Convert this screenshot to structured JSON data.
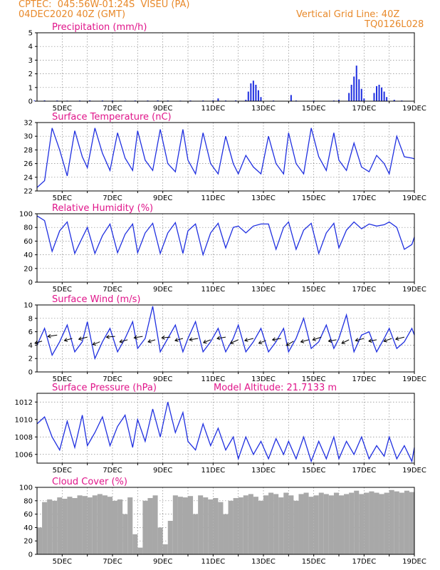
{
  "header": {
    "line1": "CPTEC:  045:56W-01:24S  VISEU (PA)",
    "line2": "04DEC2020 40Z (GMT)",
    "right1": "Vertical Grid Line: 40Z",
    "right2": "TQ0126L028"
  },
  "x_axis_labels": [
    "5DEC",
    "7DEC",
    "9DEC",
    "11DEC",
    "13DEC",
    "15DEC",
    "17DEC",
    "19DEC"
  ],
  "colors": {
    "header": "#e8892a",
    "title": "#e0158a",
    "line": "#1f2fe0",
    "cloud": "#a8a8a8",
    "arrow": "#000000"
  },
  "chart_data": [
    {
      "type": "bar",
      "title": "Precipitation (mm/h)",
      "ylim": [
        0,
        5
      ],
      "yticks": [
        "0",
        "1",
        "2",
        "3",
        "4",
        "5"
      ],
      "x_days": [
        3.9,
        4.3,
        4.8,
        5.2,
        5.7,
        6.1,
        6.6,
        7.0,
        7.5,
        7.9,
        8.4,
        8.8,
        9.2,
        9.7,
        10.1,
        10.6,
        11.0,
        11.2,
        11.5,
        11.9,
        12.3,
        12.4,
        12.5,
        12.6,
        12.7,
        12.8,
        12.9,
        13.4,
        14.1,
        14.3,
        15.0,
        15.8,
        16.0,
        16.4,
        16.5,
        16.6,
        16.7,
        16.8,
        16.9,
        17.0,
        17.4,
        17.5,
        17.6,
        17.7,
        17.8,
        17.9,
        18.2,
        18.5
      ],
      "values": [
        0.05,
        0.06,
        0.05,
        0.04,
        0.05,
        0.06,
        0.05,
        0.05,
        0.04,
        0.05,
        0.05,
        0.06,
        0.05,
        0.04,
        0.05,
        0.05,
        0.06,
        0.2,
        0.05,
        0.06,
        0.1,
        0.7,
        1.3,
        1.5,
        1.2,
        0.8,
        0.3,
        0.05,
        0.45,
        0.05,
        0.05,
        0.05,
        0.1,
        0.6,
        1.2,
        1.8,
        2.6,
        1.6,
        0.9,
        0.2,
        0.6,
        1.1,
        1.2,
        1.0,
        0.7,
        0.3,
        0.1,
        0.05
      ]
    },
    {
      "type": "line",
      "title": "Surface Temperature (nC)",
      "ylim": [
        22,
        32
      ],
      "yticks": [
        "22",
        "24",
        "26",
        "28",
        "30",
        "32"
      ],
      "x_days": [
        4.0,
        4.3,
        4.6,
        4.9,
        5.2,
        5.5,
        5.8,
        6.0,
        6.3,
        6.6,
        6.9,
        7.2,
        7.5,
        7.8,
        8.0,
        8.3,
        8.6,
        8.9,
        9.2,
        9.5,
        9.8,
        10.0,
        10.3,
        10.6,
        10.9,
        11.2,
        11.5,
        11.8,
        12.0,
        12.3,
        12.6,
        12.9,
        13.2,
        13.5,
        13.8,
        14.0,
        14.3,
        14.6,
        14.9,
        15.2,
        15.5,
        15.8,
        16.0,
        16.3,
        16.6,
        16.9,
        17.2,
        17.5,
        17.8,
        18.0,
        18.3,
        18.6,
        18.9,
        19.0
      ],
      "values": [
        22.5,
        23.5,
        31.2,
        28.0,
        24.2,
        30.8,
        27.0,
        25.4,
        31.2,
        27.5,
        25.0,
        30.5,
        26.8,
        25.0,
        30.8,
        26.5,
        25.0,
        31.0,
        26.0,
        24.8,
        31.0,
        26.5,
        24.5,
        30.5,
        26.0,
        24.5,
        30.0,
        26.0,
        24.5,
        27.2,
        25.5,
        24.5,
        30.0,
        26.0,
        24.5,
        30.5,
        26.0,
        24.5,
        31.2,
        27.0,
        25.0,
        30.5,
        26.5,
        25.0,
        29.0,
        25.5,
        24.8,
        27.2,
        26.0,
        24.5,
        30.0,
        27.0,
        26.8,
        26.7
      ]
    },
    {
      "type": "line",
      "title": "Relative Humidity (%)",
      "ylim": [
        0,
        100
      ],
      "yticks": [
        "0",
        "20",
        "40",
        "60",
        "80",
        "100"
      ],
      "x_days": [
        4.0,
        4.3,
        4.6,
        4.9,
        5.2,
        5.5,
        5.8,
        6.0,
        6.3,
        6.6,
        6.9,
        7.2,
        7.5,
        7.8,
        8.0,
        8.3,
        8.6,
        8.9,
        9.2,
        9.5,
        9.8,
        10.0,
        10.3,
        10.6,
        10.9,
        11.2,
        11.5,
        11.8,
        12.0,
        12.3,
        12.6,
        12.9,
        13.2,
        13.5,
        13.8,
        14.0,
        14.3,
        14.6,
        14.9,
        15.2,
        15.5,
        15.8,
        16.0,
        16.3,
        16.6,
        16.9,
        17.2,
        17.5,
        17.8,
        18.0,
        18.3,
        18.6,
        18.9,
        19.0
      ],
      "values": [
        97,
        90,
        45,
        75,
        88,
        42,
        65,
        80,
        42,
        68,
        85,
        43,
        70,
        85,
        43,
        72,
        86,
        42,
        72,
        87,
        42,
        75,
        85,
        40,
        72,
        86,
        50,
        80,
        82,
        72,
        82,
        85,
        85,
        48,
        80,
        88,
        48,
        76,
        86,
        42,
        72,
        86,
        50,
        76,
        88,
        78,
        85,
        82,
        84,
        88,
        80,
        48,
        55,
        66
      ]
    },
    {
      "type": "line",
      "title": "Surface Wind (m/s)",
      "ylim": [
        0,
        10
      ],
      "yticks": [
        "0",
        "2",
        "4",
        "6",
        "8",
        "10"
      ],
      "x_days": [
        4.0,
        4.3,
        4.6,
        4.9,
        5.2,
        5.5,
        5.8,
        6.0,
        6.3,
        6.6,
        6.9,
        7.2,
        7.5,
        7.8,
        8.0,
        8.3,
        8.6,
        8.9,
        9.2,
        9.5,
        9.8,
        10.0,
        10.3,
        10.6,
        10.9,
        11.2,
        11.5,
        11.8,
        12.0,
        12.3,
        12.6,
        12.9,
        13.2,
        13.5,
        13.8,
        14.0,
        14.3,
        14.6,
        14.9,
        15.2,
        15.5,
        15.8,
        16.0,
        16.3,
        16.6,
        16.9,
        17.2,
        17.5,
        17.8,
        18.0,
        18.3,
        18.6,
        18.9,
        19.0
      ],
      "values": [
        4.0,
        6.5,
        2.5,
        4.5,
        7.0,
        3.0,
        4.5,
        7.5,
        2.0,
        4.5,
        6.5,
        3.0,
        5.0,
        7.5,
        3.5,
        5.0,
        9.8,
        3.0,
        5.0,
        7.0,
        3.0,
        5.0,
        7.5,
        3.0,
        4.5,
        6.5,
        3.0,
        5.0,
        7.0,
        3.0,
        4.5,
        6.5,
        3.0,
        4.5,
        6.5,
        3.0,
        5.0,
        8.0,
        3.5,
        4.5,
        7.0,
        3.5,
        5.0,
        8.5,
        3.0,
        5.5,
        6.0,
        3.0,
        5.0,
        6.5,
        3.5,
        4.5,
        6.5,
        5.5
      ],
      "vector_x_days": [
        4.2,
        4.8,
        5.4,
        6.0,
        6.5,
        7.1,
        7.6,
        8.2,
        8.7,
        9.3,
        9.8,
        10.4,
        10.9,
        11.5,
        12.0,
        12.6,
        13.1,
        13.7,
        14.2,
        14.8,
        15.3,
        15.9,
        16.4,
        17.0,
        17.5,
        18.1,
        18.6
      ],
      "vector_speed": [
        4.6,
        5.5,
        5.0,
        5.2,
        4.5,
        5.3,
        4.8,
        5.3,
        4.8,
        5.2,
        5.0,
        5.0,
        4.8,
        5.2,
        4.8,
        5.0,
        4.7,
        5.0,
        4.6,
        4.8,
        5.2,
        4.8,
        4.8,
        5.0,
        4.8,
        5.0,
        5.2
      ],
      "vector_dx": [
        -10,
        -13,
        -11,
        -12,
        -10,
        -12,
        -11,
        -12,
        -10,
        -12,
        -11,
        -12,
        -10,
        -12,
        -11,
        -12,
        -10,
        -12,
        -10,
        -11,
        -12,
        -11,
        -10,
        -12,
        -11,
        -11,
        -12
      ],
      "vector_dy": [
        3,
        2,
        3,
        3,
        4,
        1,
        3,
        2,
        3,
        1,
        3,
        2,
        4,
        2,
        5,
        3,
        4,
        2,
        6,
        3,
        4,
        2,
        5,
        3,
        2,
        4,
        3
      ]
    },
    {
      "type": "line",
      "title": "Surface Pressure (hPa)",
      "annotation": "Model Altitude: 21.7133 m",
      "ylim": [
        1005,
        1013
      ],
      "yticks": [
        "1006",
        "1008",
        "1010",
        "1012"
      ],
      "x_days": [
        4.0,
        4.3,
        4.6,
        4.9,
        5.2,
        5.5,
        5.8,
        6.0,
        6.3,
        6.6,
        6.9,
        7.2,
        7.5,
        7.8,
        8.0,
        8.3,
        8.6,
        8.9,
        9.2,
        9.5,
        9.8,
        10.0,
        10.3,
        10.6,
        10.9,
        11.2,
        11.5,
        11.8,
        12.0,
        12.3,
        12.6,
        12.9,
        13.2,
        13.5,
        13.8,
        14.0,
        14.3,
        14.6,
        14.9,
        15.2,
        15.5,
        15.8,
        16.0,
        16.3,
        16.6,
        16.9,
        17.2,
        17.5,
        17.8,
        18.0,
        18.3,
        18.6,
        18.9,
        19.0
      ],
      "values": [
        1009.5,
        1010.3,
        1008.0,
        1006.5,
        1009.8,
        1006.8,
        1010.5,
        1007.0,
        1008.5,
        1010.3,
        1007.0,
        1009.2,
        1010.5,
        1006.8,
        1010.0,
        1007.5,
        1011.2,
        1008.0,
        1012.0,
        1008.5,
        1010.8,
        1007.5,
        1006.5,
        1009.5,
        1007.0,
        1009.0,
        1006.5,
        1008.0,
        1005.5,
        1008.0,
        1006.0,
        1007.5,
        1005.5,
        1007.8,
        1006.0,
        1007.5,
        1005.5,
        1008.0,
        1005.2,
        1007.5,
        1005.5,
        1008.0,
        1005.5,
        1007.5,
        1006.0,
        1008.0,
        1005.5,
        1007.0,
        1005.8,
        1008.0,
        1005.5,
        1007.0,
        1005.2,
        1006.8
      ]
    },
    {
      "type": "area",
      "title": "Cloud Cover (%)",
      "ylim": [
        0,
        100
      ],
      "yticks": [
        "0",
        "20",
        "40",
        "60",
        "80",
        "100"
      ],
      "x_days": [
        4.0,
        4.2,
        4.4,
        4.6,
        4.8,
        5.0,
        5.2,
        5.4,
        5.6,
        5.8,
        6.0,
        6.2,
        6.4,
        6.6,
        6.8,
        7.0,
        7.2,
        7.4,
        7.6,
        7.8,
        8.0,
        8.2,
        8.4,
        8.6,
        8.8,
        9.0,
        9.2,
        9.4,
        9.6,
        9.8,
        10.0,
        10.2,
        10.4,
        10.6,
        10.8,
        11.0,
        11.2,
        11.4,
        11.6,
        11.8,
        12.0,
        12.2,
        12.4,
        12.6,
        12.8,
        13.0,
        13.2,
        13.4,
        13.6,
        13.8,
        14.0,
        14.2,
        14.4,
        14.6,
        14.8,
        15.0,
        15.2,
        15.4,
        15.6,
        15.8,
        16.0,
        16.2,
        16.4,
        16.6,
        16.8,
        17.0,
        17.2,
        17.4,
        17.6,
        17.8,
        18.0,
        18.2,
        18.4,
        18.6,
        18.8,
        19.0
      ],
      "values": [
        40,
        78,
        82,
        80,
        85,
        83,
        86,
        84,
        88,
        87,
        85,
        88,
        90,
        88,
        86,
        80,
        82,
        60,
        85,
        30,
        10,
        80,
        84,
        88,
        40,
        15,
        50,
        88,
        86,
        85,
        87,
        60,
        88,
        85,
        82,
        84,
        78,
        60,
        80,
        84,
        85,
        88,
        90,
        86,
        80,
        88,
        92,
        90,
        85,
        92,
        88,
        80,
        90,
        92,
        86,
        88,
        92,
        90,
        88,
        92,
        88,
        90,
        92,
        95,
        90,
        92,
        94,
        92,
        90,
        92,
        96,
        94,
        92,
        95,
        93,
        92
      ]
    }
  ]
}
